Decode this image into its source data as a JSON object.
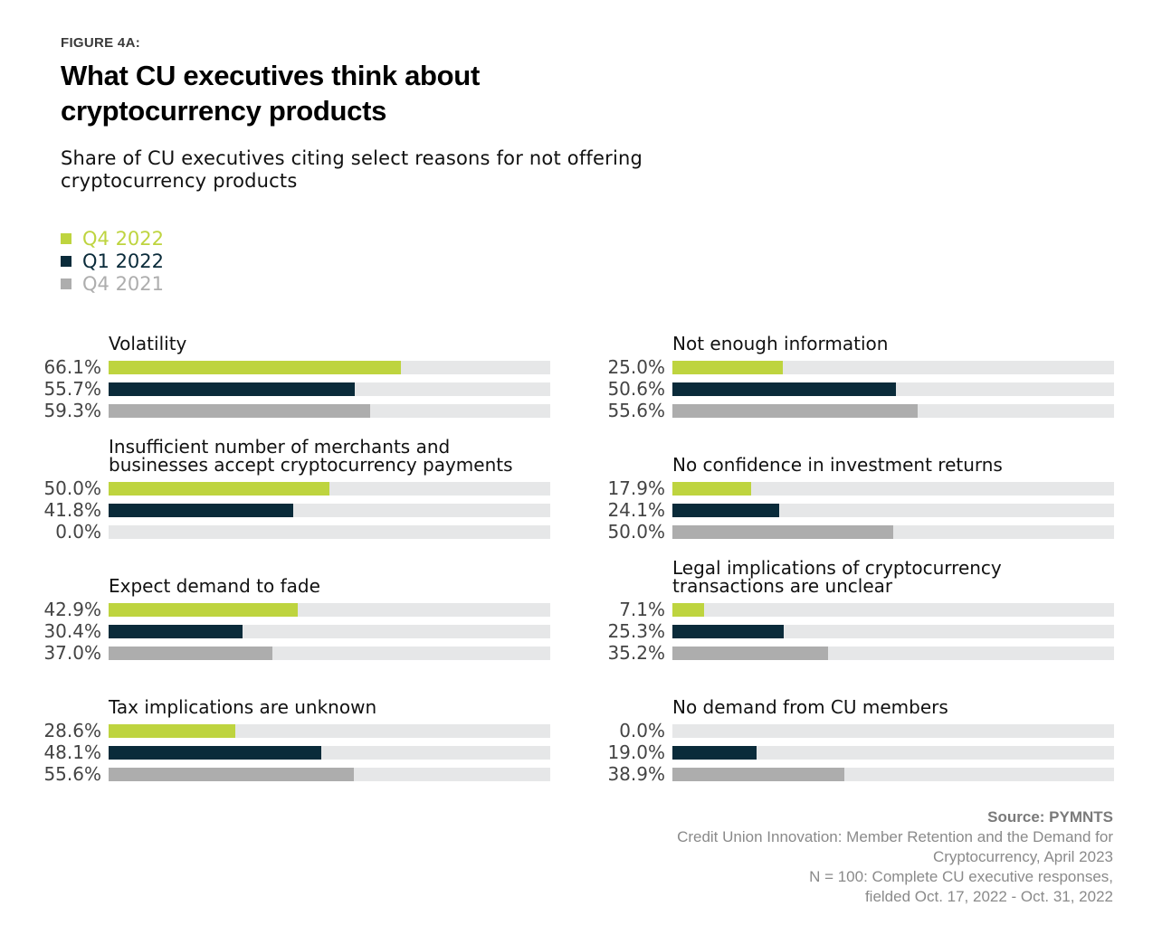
{
  "figure_label": "FIGURE 4A:",
  "title_line1": "What CU executives think about",
  "title_line2": "cryptocurrency products",
  "subtitle_line1": "Share of CU executives citing select reasons for not offering",
  "subtitle_line2": "cryptocurrency products",
  "colors": {
    "q4_2022": "#bed43f",
    "q1_2022": "#0a2b3a",
    "q4_2021": "#adadad",
    "track": "#e6e7e8"
  },
  "chart_data": {
    "type": "bar",
    "orientation": "horizontal",
    "title": "What CU executives think about cryptocurrency products",
    "subtitle": "Share of CU executives citing select reasons for not offering cryptocurrency products",
    "unit": "%",
    "xlim": [
      0,
      100
    ],
    "legend": [
      {
        "name": "Q4 2022",
        "color": "#bed43f"
      },
      {
        "name": "Q1 2022",
        "color": "#0a2b3a"
      },
      {
        "name": "Q4 2021",
        "color": "#adadad"
      }
    ],
    "panels": [
      {
        "title_lines": [
          "Volatility"
        ],
        "values": [
          66.1,
          55.7,
          59.3
        ],
        "labels": [
          "66.1%",
          "55.7%",
          "59.3%"
        ]
      },
      {
        "title_lines": [
          "Insufficient number of merchants and",
          "businesses accept cryptocurrency payments"
        ],
        "values": [
          50.0,
          41.8,
          0.0
        ],
        "labels": [
          "50.0%",
          "41.8%",
          "0.0%"
        ]
      },
      {
        "title_lines": [
          "Expect demand to fade"
        ],
        "values": [
          42.9,
          30.4,
          37.0
        ],
        "labels": [
          "42.9%",
          "30.4%",
          "37.0%"
        ]
      },
      {
        "title_lines": [
          "Tax implications are unknown"
        ],
        "values": [
          28.6,
          48.1,
          55.6
        ],
        "labels": [
          "28.6%",
          "48.1%",
          "55.6%"
        ]
      },
      {
        "title_lines": [
          "Not enough information"
        ],
        "values": [
          25.0,
          50.6,
          55.6
        ],
        "labels": [
          "25.0%",
          "50.6%",
          "55.6%"
        ]
      },
      {
        "title_lines": [
          "No confidence in investment returns"
        ],
        "values": [
          17.9,
          24.1,
          50.0
        ],
        "labels": [
          "17.9%",
          "24.1%",
          "50.0%"
        ]
      },
      {
        "title_lines": [
          "Legal implications of cryptocurrency",
          "transactions are unclear"
        ],
        "values": [
          7.1,
          25.3,
          35.2
        ],
        "labels": [
          "7.1%",
          "25.3%",
          "35.2%"
        ]
      },
      {
        "title_lines": [
          "No demand from CU members"
        ],
        "values": [
          0.0,
          19.0,
          38.9
        ],
        "labels": [
          "0.0%",
          "19.0%",
          "38.9%"
        ]
      }
    ]
  },
  "source": {
    "heading": "Source: PYMNTS",
    "lines": [
      "Credit Union Innovation: Member Retention and the Demand for",
      "Cryptocurrency, April 2023",
      "N = 100: Complete CU executive responses,",
      "fielded Oct. 17, 2022 - Oct. 31, 2022"
    ]
  }
}
